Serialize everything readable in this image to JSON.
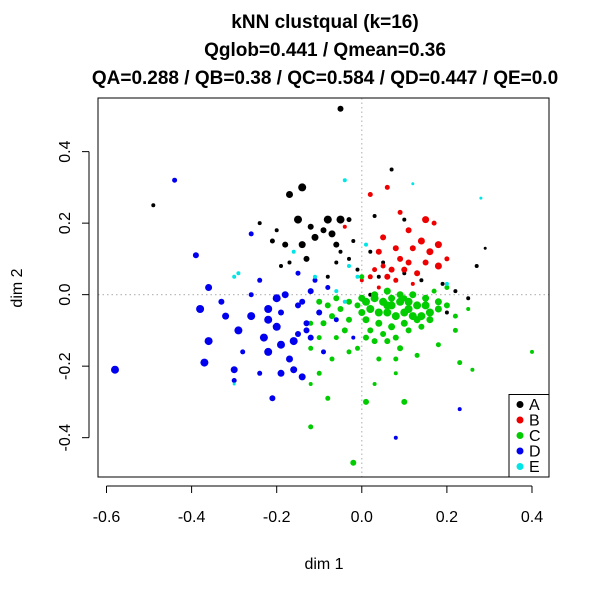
{
  "chart_data": {
    "type": "scatter",
    "title": "kNN clustqual (k=16)",
    "subtitle": "Qglob=0.441 / Qmean=0.36",
    "subtitle2": "QA=0.288 / QB=0.38 / QC=0.584 / QD=0.447 / QE=0.0",
    "xlabel": "dim 1",
    "ylabel": "dim 2",
    "xlim": [
      -0.62,
      0.44
    ],
    "ylim": [
      -0.51,
      0.55
    ],
    "xticks": [
      -0.6,
      -0.4,
      -0.2,
      0.0,
      0.2,
      0.4
    ],
    "xtick_labels": [
      "-0.6",
      "-0.4",
      "-0.2",
      "0.0",
      "0.2",
      "0.4"
    ],
    "yticks": [
      -0.4,
      -0.2,
      0.0,
      0.2,
      0.4
    ],
    "ytick_labels": [
      "-0.4",
      "-0.2",
      "0.0",
      "0.2",
      "0.4"
    ],
    "reference_lines": {
      "x": 0,
      "y": 0,
      "style": "dotted",
      "color": "#bbbbbb"
    },
    "grid": false,
    "legend_position": "bottom-right",
    "series": [
      {
        "name": "A",
        "color": "#000000",
        "points": [
          [
            -0.05,
            0.52,
            3.0
          ],
          [
            -0.49,
            0.25,
            2.0
          ],
          [
            -0.14,
            0.3,
            4.0
          ],
          [
            -0.17,
            0.28,
            3.5
          ],
          [
            -0.15,
            0.21,
            4.0
          ],
          [
            -0.08,
            0.21,
            4.0
          ],
          [
            -0.05,
            0.21,
            4.0
          ],
          [
            -0.03,
            0.21,
            2.5
          ],
          [
            -0.12,
            0.19,
            3.0
          ],
          [
            -0.09,
            0.18,
            3.0
          ],
          [
            -0.07,
            0.17,
            3.5
          ],
          [
            -0.11,
            0.16,
            3.5
          ],
          [
            -0.2,
            0.18,
            2.0
          ],
          [
            -0.24,
            0.2,
            2.0
          ],
          [
            -0.18,
            0.14,
            3.0
          ],
          [
            -0.14,
            0.14,
            3.5
          ],
          [
            -0.06,
            0.14,
            3.0
          ],
          [
            -0.02,
            0.15,
            2.0
          ],
          [
            0.02,
            0.12,
            2.0
          ],
          [
            0.07,
            0.35,
            2.0
          ],
          [
            -0.21,
            0.15,
            2.5
          ],
          [
            -0.13,
            0.1,
            3.0
          ],
          [
            -0.05,
            0.12,
            2.0
          ],
          [
            -0.03,
            0.1,
            2.0
          ],
          [
            -0.17,
            0.09,
            2.0
          ],
          [
            -0.19,
            0.08,
            2.0
          ],
          [
            0.05,
            0.09,
            2.0
          ],
          [
            0.04,
            0.05,
            2.0
          ],
          [
            0.1,
            0.06,
            2.0
          ],
          [
            -0.08,
            0.05,
            2.0
          ],
          [
            0.14,
            0.04,
            2.0
          ],
          [
            0.19,
            0.03,
            2.0
          ],
          [
            0.22,
            0.01,
            2.0
          ],
          [
            0.25,
            -0.01,
            2.0
          ],
          [
            0.29,
            0.13,
            1.5
          ],
          [
            0.27,
            0.08,
            2.0
          ],
          [
            0.1,
            0.21,
            2.0
          ],
          [
            0.03,
            0.22,
            2.0
          ],
          [
            -0.01,
            0.07,
            2.0
          ],
          [
            0.02,
            0.0,
            2.0
          ],
          [
            -0.2,
            -0.09,
            2.0
          ],
          [
            0.2,
            -0.05,
            2.0
          ],
          [
            -0.06,
            0.09,
            2.0
          ]
        ]
      },
      {
        "name": "B",
        "color": "#ee0000",
        "points": [
          [
            0.06,
            0.3,
            2.5
          ],
          [
            0.09,
            0.23,
            2.5
          ],
          [
            0.15,
            0.21,
            3.5
          ],
          [
            0.17,
            0.2,
            2.5
          ],
          [
            0.11,
            0.18,
            3.0
          ],
          [
            0.14,
            0.15,
            3.5
          ],
          [
            0.18,
            0.14,
            3.5
          ],
          [
            0.16,
            0.12,
            3.5
          ],
          [
            0.12,
            0.13,
            3.0
          ],
          [
            0.08,
            0.13,
            3.0
          ],
          [
            0.05,
            0.16,
            3.0
          ],
          [
            0.04,
            0.12,
            3.0
          ],
          [
            0.09,
            0.1,
            3.0
          ],
          [
            0.11,
            0.09,
            3.0
          ],
          [
            0.15,
            0.09,
            3.0
          ],
          [
            0.1,
            0.07,
            3.0
          ],
          [
            0.07,
            0.07,
            3.0
          ],
          [
            0.05,
            0.08,
            2.5
          ],
          [
            0.03,
            0.07,
            2.5
          ],
          [
            0.02,
            0.05,
            2.5
          ],
          [
            0.06,
            0.05,
            3.0
          ],
          [
            0.13,
            0.06,
            3.0
          ],
          [
            0.18,
            0.08,
            3.5
          ],
          [
            0.08,
            0.04,
            2.5
          ],
          [
            0.0,
            0.04,
            2.0
          ],
          [
            0.04,
            0.02,
            2.0
          ],
          [
            0.12,
            0.03,
            2.0
          ],
          [
            0.2,
            0.1,
            2.5
          ],
          [
            0.02,
            0.28,
            2.5
          ],
          [
            -0.04,
            0.19,
            2.0
          ]
        ]
      },
      {
        "name": "C",
        "color": "#00cc00",
        "points": [
          [
            0.01,
            -0.02,
            4.0
          ],
          [
            0.03,
            -0.01,
            4.0
          ],
          [
            0.05,
            -0.02,
            4.0
          ],
          [
            0.07,
            -0.03,
            4.0
          ],
          [
            0.09,
            -0.02,
            4.0
          ],
          [
            0.11,
            -0.02,
            4.0
          ],
          [
            0.13,
            -0.03,
            4.0
          ],
          [
            0.15,
            -0.03,
            4.0
          ],
          [
            0.02,
            -0.04,
            4.0
          ],
          [
            0.04,
            -0.05,
            4.0
          ],
          [
            0.06,
            -0.05,
            4.0
          ],
          [
            0.08,
            -0.06,
            4.0
          ],
          [
            0.1,
            -0.05,
            4.0
          ],
          [
            0.12,
            -0.06,
            4.0
          ],
          [
            0.14,
            -0.06,
            4.0
          ],
          [
            0.16,
            -0.05,
            4.0
          ],
          [
            0.03,
            0.0,
            3.5
          ],
          [
            0.06,
            0.01,
            3.5
          ],
          [
            0.09,
            0.0,
            3.5
          ],
          [
            0.12,
            0.0,
            3.5
          ],
          [
            0.15,
            -0.01,
            3.5
          ],
          [
            0.18,
            -0.02,
            3.5
          ],
          [
            0.18,
            -0.04,
            3.5
          ],
          [
            0.2,
            -0.03,
            3.0
          ],
          [
            0.01,
            -0.07,
            3.5
          ],
          [
            0.04,
            -0.08,
            3.5
          ],
          [
            0.07,
            -0.09,
            3.5
          ],
          [
            0.1,
            -0.08,
            3.5
          ],
          [
            0.13,
            -0.07,
            3.5
          ],
          [
            0.16,
            -0.07,
            3.5
          ],
          [
            0.0,
            -0.01,
            3.5
          ],
          [
            -0.01,
            -0.03,
            3.0
          ],
          [
            -0.03,
            -0.02,
            3.0
          ],
          [
            -0.05,
            -0.04,
            3.0
          ],
          [
            -0.03,
            -0.07,
            3.0
          ],
          [
            0.02,
            -0.1,
            3.0
          ],
          [
            0.05,
            -0.11,
            3.0
          ],
          [
            0.08,
            -0.12,
            3.0
          ],
          [
            0.11,
            -0.1,
            3.0
          ],
          [
            0.14,
            -0.09,
            3.0
          ],
          [
            0.03,
            -0.13,
            3.0
          ],
          [
            0.06,
            -0.13,
            3.0
          ],
          [
            0.09,
            -0.15,
            3.0
          ],
          [
            0.01,
            -0.12,
            3.0
          ],
          [
            -0.06,
            -0.01,
            3.0
          ],
          [
            -0.08,
            -0.03,
            3.0
          ],
          [
            -0.07,
            -0.06,
            3.0
          ],
          [
            -0.09,
            -0.08,
            3.0
          ],
          [
            -0.1,
            -0.02,
            3.0
          ],
          [
            -0.04,
            -0.1,
            3.0
          ],
          [
            -0.06,
            -0.12,
            2.5
          ],
          [
            -0.1,
            -0.12,
            2.5
          ],
          [
            -0.07,
            -0.18,
            2.5
          ],
          [
            -0.1,
            -0.22,
            2.5
          ],
          [
            -0.12,
            -0.25,
            2.0
          ],
          [
            -0.03,
            -0.16,
            2.5
          ],
          [
            -0.01,
            -0.15,
            2.5
          ],
          [
            0.04,
            -0.18,
            2.5
          ],
          [
            0.08,
            -0.18,
            2.5
          ],
          [
            0.13,
            -0.17,
            2.5
          ],
          [
            0.18,
            -0.14,
            2.5
          ],
          [
            0.22,
            -0.1,
            2.5
          ],
          [
            0.25,
            -0.04,
            2.0
          ],
          [
            0.23,
            -0.19,
            2.5
          ],
          [
            0.03,
            -0.25,
            2.0
          ],
          [
            0.08,
            -0.22,
            2.0
          ],
          [
            0.01,
            -0.3,
            3.0
          ],
          [
            0.1,
            -0.3,
            3.0
          ],
          [
            -0.08,
            -0.29,
            2.5
          ],
          [
            -0.12,
            -0.37,
            2.5
          ],
          [
            -0.02,
            -0.47,
            3.0
          ],
          [
            0.4,
            -0.16,
            2.0
          ],
          [
            0.26,
            -0.21,
            2.0
          ],
          [
            0.2,
            0.02,
            2.5
          ],
          [
            0.22,
            -0.06,
            2.5
          ],
          [
            -0.12,
            -0.15,
            2.5
          ],
          [
            0.0,
            0.05,
            2.5
          ],
          [
            0.17,
            0.01,
            2.5
          ],
          [
            0.1,
            -0.01,
            3.0
          ],
          [
            0.06,
            -0.03,
            4.0
          ],
          [
            0.11,
            -0.04,
            4.0
          ],
          [
            0.0,
            -0.05,
            3.5
          ],
          [
            -0.12,
            -0.08,
            2.5
          ],
          [
            0.07,
            -0.01,
            3.5
          ]
        ]
      },
      {
        "name": "D",
        "color": "#0000ee",
        "points": [
          [
            -0.58,
            -0.21,
            4.0
          ],
          [
            -0.44,
            0.32,
            2.5
          ],
          [
            -0.39,
            0.11,
            3.0
          ],
          [
            -0.36,
            0.02,
            3.5
          ],
          [
            -0.38,
            -0.04,
            4.0
          ],
          [
            -0.33,
            -0.02,
            3.0
          ],
          [
            -0.32,
            -0.06,
            3.5
          ],
          [
            -0.29,
            -0.1,
            4.0
          ],
          [
            -0.36,
            -0.13,
            4.0
          ],
          [
            -0.37,
            -0.19,
            4.0
          ],
          [
            -0.3,
            -0.21,
            3.5
          ],
          [
            -0.26,
            -0.06,
            4.0
          ],
          [
            -0.22,
            -0.04,
            4.0
          ],
          [
            -0.22,
            -0.07,
            4.0
          ],
          [
            -0.2,
            -0.09,
            4.0
          ],
          [
            -0.23,
            -0.12,
            4.0
          ],
          [
            -0.19,
            -0.14,
            4.0
          ],
          [
            -0.22,
            -0.16,
            4.0
          ],
          [
            -0.16,
            -0.13,
            4.0
          ],
          [
            -0.2,
            -0.01,
            4.0
          ],
          [
            -0.18,
            0.0,
            3.5
          ],
          [
            -0.15,
            -0.03,
            3.0
          ],
          [
            -0.17,
            -0.18,
            3.5
          ],
          [
            -0.16,
            -0.21,
            3.5
          ],
          [
            -0.19,
            -0.22,
            3.5
          ],
          [
            -0.15,
            -0.11,
            3.0
          ],
          [
            -0.13,
            -0.08,
            3.0
          ],
          [
            -0.14,
            -0.02,
            3.0
          ],
          [
            -0.21,
            -0.29,
            3.0
          ],
          [
            -0.3,
            -0.24,
            2.5
          ],
          [
            -0.24,
            -0.22,
            2.5
          ],
          [
            -0.14,
            -0.23,
            3.5
          ],
          [
            -0.12,
            -0.12,
            3.0
          ],
          [
            -0.1,
            -0.05,
            3.0
          ],
          [
            -0.11,
            0.04,
            2.5
          ],
          [
            -0.08,
            0.02,
            2.5
          ],
          [
            -0.09,
            -0.16,
            2.5
          ],
          [
            -0.15,
            0.06,
            2.5
          ],
          [
            -0.12,
            0.01,
            3.0
          ],
          [
            -0.26,
            0.17,
            2.5
          ],
          [
            -0.26,
            0.0,
            2.5
          ],
          [
            0.23,
            -0.32,
            2.0
          ],
          [
            0.08,
            -0.4,
            2.0
          ],
          [
            -0.13,
            -0.1,
            3.0
          ],
          [
            -0.24,
            0.04,
            2.5
          ],
          [
            -0.28,
            -0.16,
            2.5
          ],
          [
            -0.06,
            -0.07,
            2.5
          ],
          [
            -0.02,
            -0.12,
            2.0
          ],
          [
            -0.19,
            -0.05,
            3.0
          ]
        ]
      },
      {
        "name": "E",
        "color": "#00e5e5",
        "points": [
          [
            -0.04,
            0.32,
            2.0
          ],
          [
            -0.3,
            0.05,
            2.0
          ],
          [
            -0.29,
            0.06,
            2.0
          ],
          [
            -0.11,
            0.05,
            2.0
          ],
          [
            -0.03,
            0.08,
            2.0
          ],
          [
            -0.01,
            0.05,
            2.0
          ],
          [
            -0.06,
            0.01,
            2.0
          ],
          [
            -0.3,
            -0.25,
            1.5
          ],
          [
            0.2,
            0.03,
            2.0
          ],
          [
            0.28,
            0.27,
            1.5
          ],
          [
            0.12,
            0.31,
            1.5
          ],
          [
            -0.16,
            0.12,
            2.0
          ],
          [
            -0.04,
            -0.02,
            2.0
          ],
          [
            0.01,
            0.14,
            2.0
          ]
        ]
      }
    ]
  }
}
